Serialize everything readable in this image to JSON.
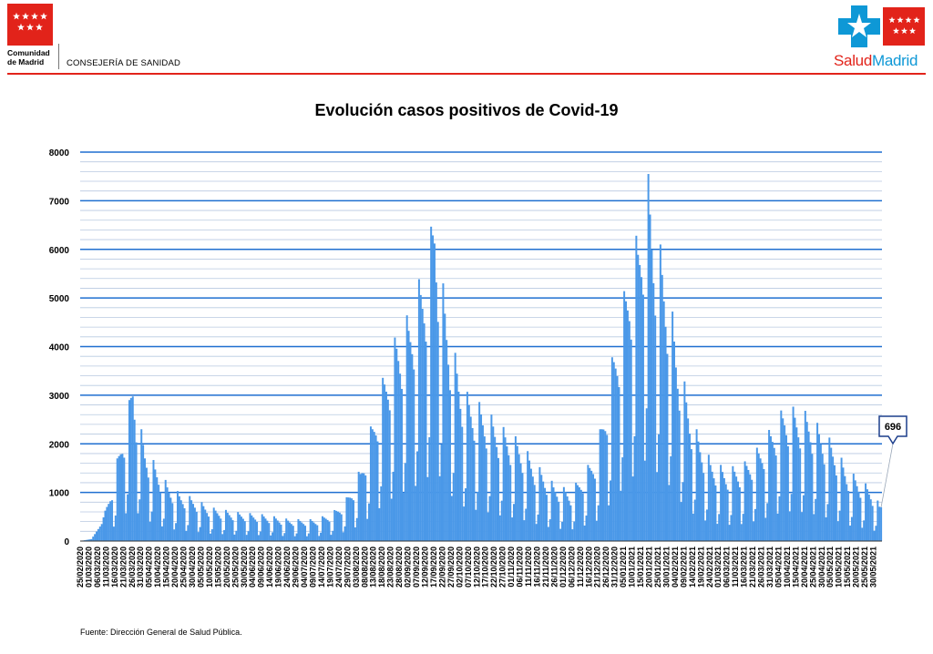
{
  "header": {
    "org_line1": "Comunidad",
    "org_line2": "de Madrid",
    "department": "CONSEJERÍA DE SANIDAD",
    "brand_part1": "Salud",
    "brand_part2": "Madrid"
  },
  "colors": {
    "accent_red": "#e2231a",
    "brand_blue": "#0e98d6",
    "bar_blue": "#4a98e8",
    "grid_major": "#1f6fd0",
    "grid_minor": "#b8c9e0",
    "callout_border": "#1c3e8c"
  },
  "source": "Fuente: Dirección General de Salud Pública.",
  "chart_data": {
    "type": "bar",
    "title": "Evolución casos positivos de Covid-19",
    "xlabel": "",
    "ylabel": "",
    "ylim": [
      0,
      8000
    ],
    "yticks": [
      0,
      1000,
      2000,
      3000,
      4000,
      5000,
      6000,
      7000,
      8000
    ],
    "grid": true,
    "date_start": "25/02/2020",
    "date_end": "03/06/2021",
    "xtick_labels": [
      "25/02/2020",
      "01/03/2020",
      "06/03/2020",
      "11/03/2020",
      "16/03/2020",
      "21/03/2020",
      "26/03/2020",
      "31/03/2020",
      "05/04/2020",
      "10/04/2020",
      "15/04/2020",
      "20/04/2020",
      "25/04/2020",
      "30/04/2020",
      "05/05/2020",
      "10/05/2020",
      "15/05/2020",
      "20/05/2020",
      "25/05/2020",
      "30/05/2020",
      "04/06/2020",
      "09/06/2020",
      "14/06/2020",
      "19/06/2020",
      "24/06/2020",
      "29/06/2020",
      "04/07/2020",
      "09/07/2020",
      "14/07/2020",
      "19/07/2020",
      "24/07/2020",
      "29/07/2020",
      "03/08/2020",
      "08/08/2020",
      "13/08/2020",
      "18/08/2020",
      "23/08/2020",
      "28/08/2020",
      "02/09/2020",
      "07/09/2020",
      "12/09/2020",
      "17/09/2020",
      "22/09/2020",
      "27/09/2020",
      "02/10/2020",
      "07/10/2020",
      "12/10/2020",
      "17/10/2020",
      "22/10/2020",
      "27/10/2020",
      "01/11/2020",
      "06/11/2020",
      "11/11/2020",
      "16/11/2020",
      "21/11/2020",
      "26/11/2020",
      "01/12/2020",
      "06/12/2020",
      "11/12/2020",
      "16/12/2020",
      "21/12/2020",
      "26/12/2020",
      "31/12/2020",
      "05/01/2021",
      "10/01/2021",
      "15/01/2021",
      "20/01/2021",
      "25/01/2021",
      "30/01/2021",
      "04/02/2021",
      "09/02/2021",
      "14/02/2021",
      "19/02/2021",
      "24/02/2021",
      "01/03/2021",
      "06/03/2021",
      "11/03/2021",
      "16/03/2021",
      "21/03/2021",
      "26/03/2021",
      "31/03/2021",
      "05/04/2021",
      "10/04/2021",
      "15/04/2021",
      "20/04/2021",
      "25/04/2021",
      "30/04/2021",
      "05/05/2021",
      "10/05/2021",
      "15/05/2021",
      "20/05/2021",
      "25/05/2021",
      "30/05/2021"
    ],
    "anchors": [
      [
        "25/02/2020",
        5
      ],
      [
        "02/03/2020",
        40
      ],
      [
        "08/03/2020",
        350
      ],
      [
        "12/03/2020",
        900
      ],
      [
        "16/03/2020",
        1500
      ],
      [
        "20/03/2020",
        2300
      ],
      [
        "24/03/2020",
        2900
      ],
      [
        "26/03/2020",
        3500
      ],
      [
        "29/03/2020",
        2600
      ],
      [
        "02/04/2020",
        2000
      ],
      [
        "08/04/2020",
        1600
      ],
      [
        "15/04/2020",
        1200
      ],
      [
        "22/04/2020",
        1000
      ],
      [
        "30/04/2020",
        900
      ],
      [
        "10/05/2020",
        700
      ],
      [
        "25/05/2020",
        600
      ],
      [
        "10/06/2020",
        550
      ],
      [
        "25/06/2020",
        450
      ],
      [
        "10/07/2020",
        450
      ],
      [
        "20/07/2020",
        600
      ],
      [
        "28/07/2020",
        900
      ],
      [
        "05/08/2020",
        1500
      ],
      [
        "12/08/2020",
        2500
      ],
      [
        "19/08/2020",
        3500
      ],
      [
        "26/08/2020",
        4300
      ],
      [
        "02/09/2020",
        4700
      ],
      [
        "09/09/2020",
        5500
      ],
      [
        "14/09/2020",
        6100
      ],
      [
        "17/09/2020",
        7200
      ],
      [
        "22/09/2020",
        5300
      ],
      [
        "28/09/2020",
        4000
      ],
      [
        "05/10/2020",
        3100
      ],
      [
        "15/10/2020",
        2800
      ],
      [
        "25/10/2020",
        2400
      ],
      [
        "05/11/2020",
        2100
      ],
      [
        "15/11/2020",
        1600
      ],
      [
        "25/11/2020",
        1200
      ],
      [
        "05/12/2020",
        1050
      ],
      [
        "14/12/2020",
        1500
      ],
      [
        "20/12/2020",
        1900
      ],
      [
        "25/12/2020",
        2900
      ],
      [
        "30/12/2020",
        4000
      ],
      [
        "03/01/2021",
        4700
      ],
      [
        "08/01/2021",
        5800
      ],
      [
        "13/01/2021",
        6400
      ],
      [
        "18/01/2021",
        7800
      ],
      [
        "22/01/2021",
        6800
      ],
      [
        "26/01/2021",
        6100
      ],
      [
        "30/01/2021",
        5500
      ],
      [
        "04/02/2021",
        4200
      ],
      [
        "10/02/2021",
        3100
      ],
      [
        "16/02/2021",
        2300
      ],
      [
        "24/02/2021",
        1700
      ],
      [
        "05/03/2021",
        1500
      ],
      [
        "15/03/2021",
        1600
      ],
      [
        "25/03/2021",
        2000
      ],
      [
        "01/04/2021",
        2400
      ],
      [
        "08/04/2021",
        2800
      ],
      [
        "15/04/2021",
        2750
      ],
      [
        "22/04/2021",
        2650
      ],
      [
        "30/04/2021",
        2300
      ],
      [
        "07/05/2021",
        2000
      ],
      [
        "14/05/2021",
        1500
      ],
      [
        "21/05/2021",
        1300
      ],
      [
        "28/05/2021",
        1100
      ],
      [
        "03/06/2021",
        700
      ]
    ],
    "last_value_label": "696"
  }
}
